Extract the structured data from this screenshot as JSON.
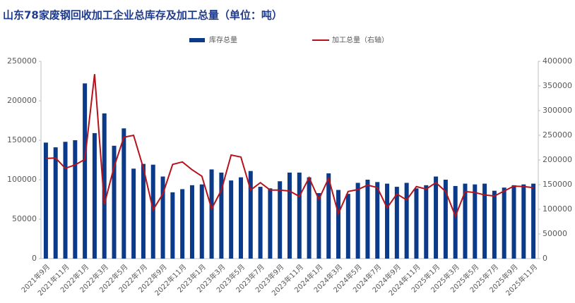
{
  "chart_data": {
    "type": "combo",
    "title": "山东78家废钢回收加工企业总库存及加工总量（单位：吨）",
    "categories": [
      "2021年9月",
      null,
      "2021年11月",
      null,
      "2022年1月",
      null,
      "2022年3月",
      null,
      "2022年5月",
      null,
      "2022年7月",
      null,
      "2022年9月",
      null,
      "2022年11月",
      null,
      "2023年1月",
      null,
      "2023年3月",
      null,
      "2023年5月",
      null,
      "2023年7月",
      null,
      "2023年9月",
      null,
      "2023年11月",
      null,
      "2024年1月",
      null,
      "2024年3月",
      null,
      "2024年5月",
      null,
      "2024年7月",
      null,
      "2024年9月",
      null,
      "2024年11月",
      null,
      "2025年1月",
      null,
      "2025年3月",
      null,
      "2025年5月",
      null,
      "2025年7月",
      null,
      "2025年9月",
      null,
      "2025年11月"
    ],
    "series": [
      {
        "name": "库存总量",
        "type": "bar",
        "color": "#0b3a8a",
        "values": [
          147000,
          141000,
          148000,
          150000,
          222000,
          159000,
          184000,
          143000,
          165000,
          114000,
          120000,
          119000,
          104000,
          84000,
          88000,
          93000,
          94000,
          113000,
          109000,
          99000,
          103000,
          111000,
          91000,
          89000,
          98000,
          109000,
          109000,
          103000,
          83000,
          108000,
          87000,
          82000,
          96000,
          100000,
          97000,
          95000,
          91000,
          96000,
          89000,
          93000,
          104000,
          100000,
          92000,
          95000,
          94000,
          95000,
          86000,
          90000,
          93000,
          94000,
          95000
        ]
      },
      {
        "name": "加工总量（右轴）",
        "type": "line",
        "axis": "y2",
        "color": "#b5121b",
        "values": [
          203000,
          204000,
          183000,
          190000,
          201000,
          374000,
          110000,
          186000,
          246000,
          250000,
          184000,
          99000,
          131000,
          191000,
          196000,
          180000,
          167000,
          101000,
          139000,
          210000,
          206000,
          139000,
          154000,
          139000,
          139000,
          137000,
          126000,
          164000,
          120000,
          163000,
          91000,
          136000,
          140000,
          149000,
          144000,
          103000,
          131000,
          119000,
          146000,
          141000,
          154000,
          136000,
          86000,
          136000,
          134000,
          129000,
          127000,
          137000,
          147000,
          146000,
          144000
        ]
      }
    ],
    "ylim": [
      0,
      250000
    ],
    "yticks": [
      0,
      50000,
      100000,
      150000,
      200000,
      250000
    ],
    "y2lim": [
      0,
      400000
    ],
    "y2ticks": [
      0,
      50000,
      100000,
      150000,
      200000,
      250000,
      300000,
      350000,
      400000
    ],
    "legend": "top"
  }
}
